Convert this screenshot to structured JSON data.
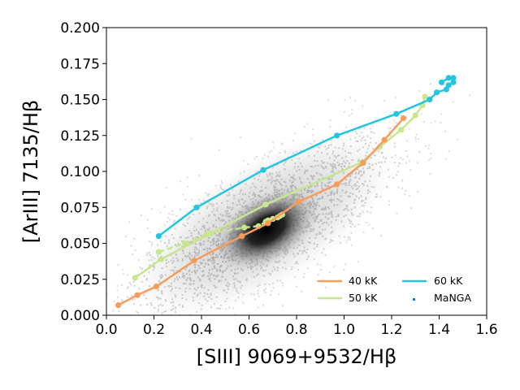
{
  "chart_data": {
    "type": "scatter",
    "title": "",
    "xlabel": "[SIII] 9069+9532/Hβ",
    "ylabel": "[ArIII] 7135/Hβ",
    "xlim": [
      0.0,
      1.6
    ],
    "ylim": [
      0.0,
      0.2
    ],
    "x_ticks": [
      "0.0",
      "0.2",
      "0.4",
      "0.6",
      "0.8",
      "1.0",
      "1.2",
      "1.4",
      "1.6"
    ],
    "y_ticks": [
      "0.000",
      "0.025",
      "0.050",
      "0.075",
      "0.100",
      "0.125",
      "0.150",
      "0.175",
      "0.200"
    ],
    "grid": false,
    "legend_position": "lower-right",
    "legend_columns": 2,
    "series": [
      {
        "name": "40 kK",
        "kind": "line-marker",
        "color": "#f79d5c",
        "x": [
          0.05,
          0.13,
          0.21,
          0.37,
          0.57,
          0.68,
          0.81,
          0.97,
          1.08,
          1.17,
          1.25
        ],
        "y": [
          0.007,
          0.014,
          0.02,
          0.038,
          0.055,
          0.064,
          0.079,
          0.091,
          0.106,
          0.122,
          0.137
        ]
      },
      {
        "name": "50 kK",
        "kind": "line-marker",
        "color": "#c8e68e",
        "dashed_branch": {
          "x": [
            0.22,
            0.33,
            0.42,
            0.44,
            0.58,
            0.64,
            0.67,
            0.68,
            0.7,
            0.72,
            0.73,
            0.74
          ],
          "y": [
            0.044,
            0.05,
            0.056,
            0.057,
            0.061,
            0.062,
            0.065,
            0.066,
            0.067,
            0.068,
            0.069,
            0.07
          ]
        },
        "x": [
          0.12,
          0.23,
          0.44,
          0.67,
          1.07,
          1.15,
          1.24,
          1.3,
          1.33,
          1.34
        ],
        "y": [
          0.026,
          0.039,
          0.057,
          0.077,
          0.106,
          0.117,
          0.129,
          0.139,
          0.146,
          0.152
        ]
      },
      {
        "name": "60 kK",
        "kind": "line-marker",
        "color": "#23c5e0",
        "x": [
          0.22,
          0.38,
          0.66,
          0.97,
          1.22,
          1.36,
          1.39,
          1.43,
          1.44,
          1.46,
          1.46,
          1.44,
          1.41
        ],
        "y": [
          0.055,
          0.075,
          0.101,
          0.125,
          0.14,
          0.15,
          0.155,
          0.157,
          0.16,
          0.162,
          0.165,
          0.165,
          0.162
        ]
      },
      {
        "name": "MaNGA",
        "kind": "scatter-density",
        "color": "#1f77b4",
        "center": [
          0.66,
          0.063
        ],
        "note_points": "dense grey cloud of galaxy spaxels"
      }
    ]
  }
}
